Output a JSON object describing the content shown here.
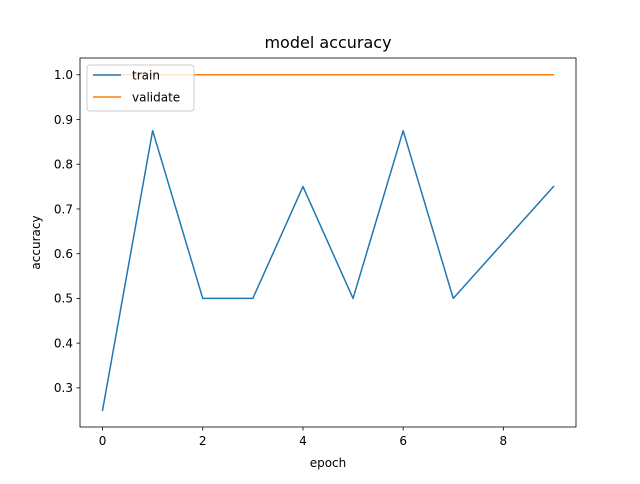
{
  "chart_data": {
    "type": "line",
    "title": "model accuracy",
    "xlabel": "epoch",
    "ylabel": "accuracy",
    "x": [
      0,
      1,
      2,
      3,
      4,
      5,
      6,
      7,
      8,
      9
    ],
    "xlim": [
      -0.45,
      9.45
    ],
    "ylim": [
      0.2125,
      1.0375
    ],
    "xticks": [
      0,
      2,
      4,
      6,
      8
    ],
    "xtick_labels": [
      "0",
      "2",
      "4",
      "6",
      "8"
    ],
    "yticks": [
      0.3,
      0.4,
      0.5,
      0.6,
      0.7,
      0.8,
      0.9,
      1.0
    ],
    "ytick_labels": [
      "0.3",
      "0.4",
      "0.5",
      "0.6",
      "0.7",
      "0.8",
      "0.9",
      "1.0"
    ],
    "grid": false,
    "legend_position": "upper-left",
    "series": [
      {
        "name": "train",
        "color": "#1f77b4",
        "values": [
          0.25,
          0.875,
          0.5,
          0.5,
          0.75,
          0.5,
          0.875,
          0.5,
          0.625,
          0.75
        ]
      },
      {
        "name": "validate",
        "color": "#ff7f0e",
        "values": [
          1.0,
          1.0,
          1.0,
          1.0,
          1.0,
          1.0,
          1.0,
          1.0,
          1.0,
          1.0
        ]
      }
    ]
  }
}
